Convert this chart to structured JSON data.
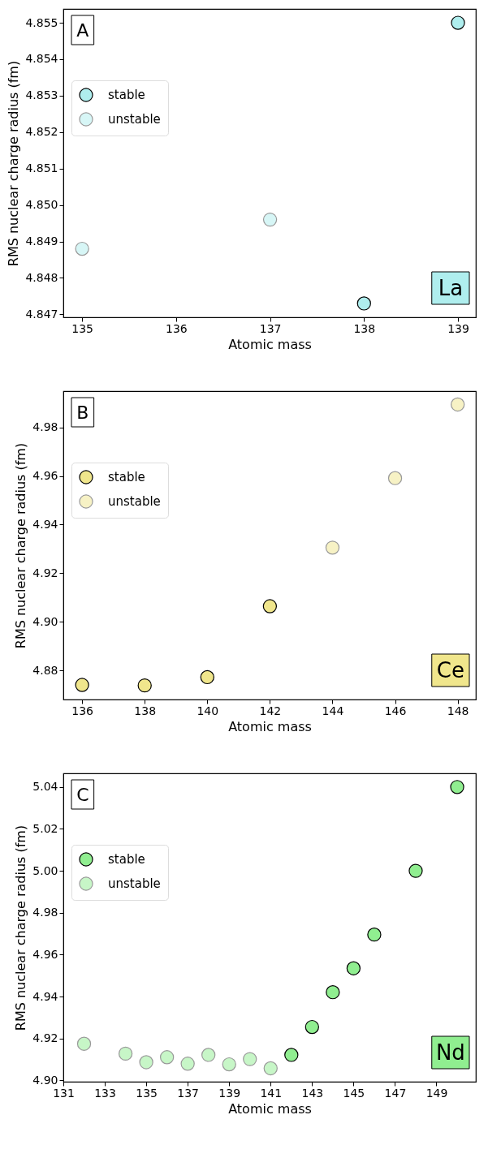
{
  "chart_data": [
    {
      "type": "scatter",
      "xlabel": "Atomic mass",
      "ylabel": "RMS nuclear charge radius (fm)",
      "annotations": [
        "A",
        "La"
      ],
      "marker": "circle",
      "grid": false,
      "legend": "top left",
      "xlim": [
        134.8,
        139.19
      ],
      "xticks": [
        135,
        136,
        137,
        138,
        139
      ],
      "ylim": [
        4.84692,
        4.85538
      ],
      "yticks": [
        {
          "value": 4.847,
          "label": "4.847"
        },
        {
          "value": 4.848,
          "label": "4.848"
        },
        {
          "value": 4.849,
          "label": "4.849"
        },
        {
          "value": 4.85,
          "label": "4.850"
        },
        {
          "value": 4.851,
          "label": "4.851"
        },
        {
          "value": 4.852,
          "label": "4.852"
        },
        {
          "value": 4.853,
          "label": "4.853"
        },
        {
          "value": 4.854,
          "label": "4.854"
        },
        {
          "value": 4.855,
          "label": "4.855"
        }
      ],
      "series": [
        {
          "name": "stable",
          "color": "#afeeee",
          "x": [
            138,
            139
          ],
          "values": [
            4.8473,
            4.855
          ]
        },
        {
          "name": "unstable",
          "color": "#d7f6f6",
          "x": [
            135,
            137
          ],
          "values": [
            4.8488,
            4.8496
          ]
        }
      ]
    },
    {
      "type": "scatter",
      "xlabel": "Atomic mass",
      "ylabel": "RMS nuclear charge radius (fm)",
      "annotations": [
        "B",
        "Ce"
      ],
      "marker": "circle",
      "grid": false,
      "legend": "top left",
      "xlim": [
        135.4,
        148.58
      ],
      "xticks": [
        136,
        138,
        140,
        142,
        144,
        146,
        148
      ],
      "ylim": [
        4.868,
        4.9949
      ],
      "yticks": [
        4.88,
        {
          "value": 4.9,
          "label": "4.90"
        },
        4.92,
        4.94,
        4.96,
        4.98
      ],
      "series": [
        {
          "name": "stable",
          "color": "#f0e68c",
          "x": [
            136,
            138,
            140,
            142
          ],
          "values": [
            4.874,
            4.8738,
            4.8772,
            4.9064
          ]
        },
        {
          "name": "unstable",
          "color": "#f7f2c5",
          "x": [
            144,
            146,
            148
          ],
          "values": [
            4.9305,
            4.9591,
            4.9894
          ]
        }
      ]
    },
    {
      "type": "scatter",
      "xlabel": "Atomic mass",
      "ylabel": "RMS nuclear charge radius (fm)",
      "annotations": [
        "C",
        "Nd"
      ],
      "marker": "circle",
      "grid": false,
      "legend": "top left",
      "xlim": [
        131,
        150.9
      ],
      "xticks": [
        131,
        133,
        135,
        137,
        139,
        141,
        143,
        145,
        147,
        149
      ],
      "ylim": [
        4.8994,
        5.0465
      ],
      "yticks": [
        {
          "value": 4.9,
          "label": "4.90"
        },
        4.92,
        4.94,
        4.96,
        4.98,
        {
          "value": 5.0,
          "label": "5.00"
        },
        5.02,
        5.04
      ],
      "series": [
        {
          "name": "stable",
          "color": "#90ee90",
          "x": [
            142,
            143,
            144,
            145,
            146,
            148,
            150
          ],
          "values": [
            4.9122,
            4.9255,
            4.9421,
            4.9535,
            4.9696,
            5.0,
            5.04
          ]
        },
        {
          "name": "unstable",
          "color": "#c7f6c7",
          "x": [
            132,
            134,
            135,
            136,
            137,
            138,
            139,
            140,
            141
          ],
          "values": [
            4.9175,
            4.9128,
            4.9087,
            4.9111,
            4.908,
            4.9122,
            4.9077,
            4.9102,
            4.9058
          ]
        }
      ]
    }
  ]
}
